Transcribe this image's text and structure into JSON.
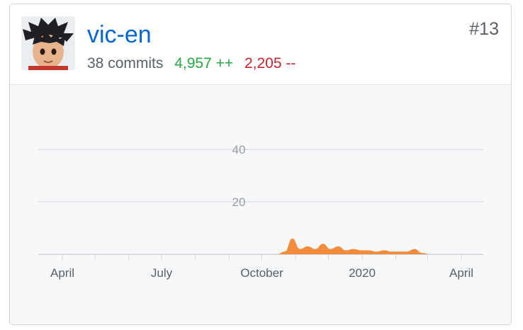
{
  "contributor": {
    "username": "vic-en",
    "commits_label": "38 commits",
    "additions_label": "4,957 ++",
    "deletions_label": "2,205 --",
    "rank_label": "#13"
  },
  "colors": {
    "username": "#0366d6",
    "additions": "#28a745",
    "deletions": "#cb2431",
    "area_fill": "#f48c3c",
    "chart_background": "#f6f8fa"
  },
  "chart_data": {
    "type": "area",
    "title": "",
    "xlabel": "",
    "ylabel": "",
    "ylim": [
      0,
      50
    ],
    "y_ticks": [
      20,
      40
    ],
    "x_tick_labels": [
      "April",
      "July",
      "October",
      "2020",
      "April"
    ],
    "x_tick_dates": [
      "2019-04-01",
      "2019-07-01",
      "2019-10-01",
      "2020-01-01",
      "2020-04-01"
    ],
    "x_range": [
      "2019-03-01",
      "2020-05-01"
    ],
    "grid": true,
    "legend": "none",
    "series": [
      {
        "x": [
          "2019-10-15",
          "2019-10-22",
          "2019-10-29",
          "2019-11-05",
          "2019-11-12",
          "2019-11-19",
          "2019-11-26",
          "2019-12-03",
          "2019-12-10",
          "2019-12-17",
          "2019-12-24",
          "2019-12-31",
          "2020-01-07",
          "2020-01-14",
          "2020-01-21",
          "2020-01-28",
          "2020-02-04",
          "2020-02-11",
          "2020-02-18",
          "2020-02-25",
          "2020-03-03"
        ],
        "values": [
          0,
          1,
          6,
          2,
          3,
          2,
          4,
          2,
          3,
          1.5,
          2,
          1.5,
          1.5,
          1,
          1.5,
          1,
          1,
          1,
          2,
          0.5,
          0
        ]
      }
    ]
  }
}
